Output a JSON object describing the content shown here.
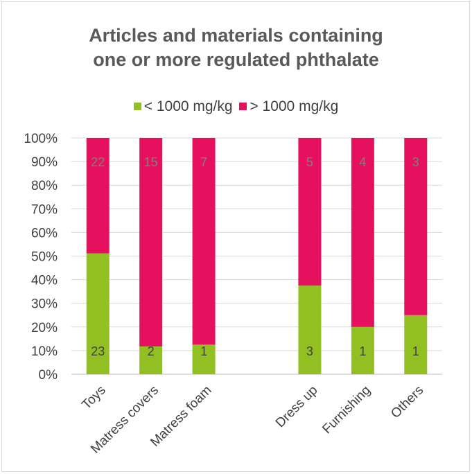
{
  "chart_data": {
    "type": "bar",
    "stacked": true,
    "percent": true,
    "title": "Articles and materials containing one or more regulated phthalate",
    "categories": [
      "Toys",
      "Matress covers",
      "Matress foam",
      "",
      "Dress up",
      "Furnishing",
      "Others"
    ],
    "series": [
      {
        "name": "< 1000 mg/kg",
        "color": "#92c023",
        "values": [
          23,
          2,
          1,
          null,
          3,
          1,
          1
        ]
      },
      {
        "name": "> 1000 mg/kg",
        "color": "#e5115f",
        "values": [
          22,
          15,
          7,
          null,
          5,
          4,
          3
        ]
      }
    ],
    "yticks": [
      "0%",
      "10%",
      "20%",
      "30%",
      "40%",
      "50%",
      "60%",
      "70%",
      "80%",
      "90%",
      "100%"
    ],
    "ylim": [
      0,
      100
    ],
    "grid": true,
    "legend": "top"
  },
  "labels": {
    "title_line1": "Articles and materials containing",
    "title_line2": "one or more regulated phthalate"
  }
}
